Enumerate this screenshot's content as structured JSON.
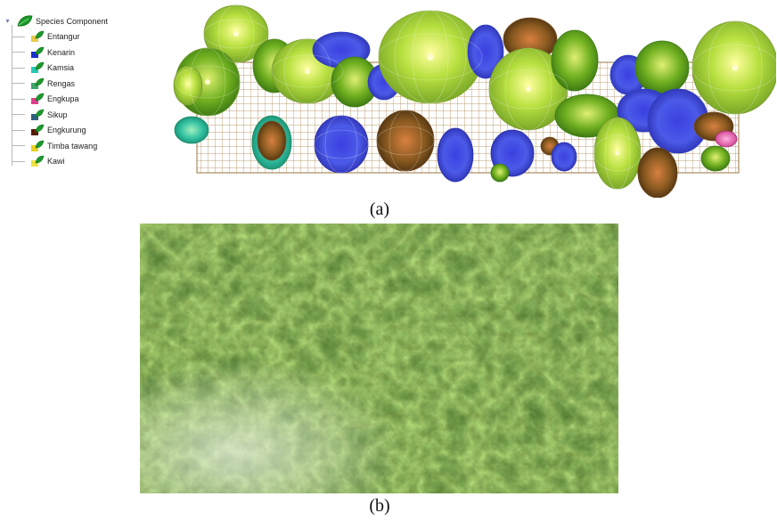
{
  "tree": {
    "root_label": "Species Component",
    "root_icon": "leaf-icon",
    "items": [
      {
        "label": "Entangur",
        "color": "#e6c84a"
      },
      {
        "label": "Kenarin",
        "color": "#1a2fd0"
      },
      {
        "label": "Kamsia",
        "color": "#29c9b6"
      },
      {
        "label": "Rengas",
        "color": "#3fa46a"
      },
      {
        "label": "Engkupa",
        "color": "#e0408c"
      },
      {
        "label": "Sikup",
        "color": "#2f6080"
      },
      {
        "label": "Engkurung",
        "color": "#5a1a08"
      },
      {
        "label": "Timba tawang",
        "color": "#e8d020"
      },
      {
        "label": "Kawi",
        "color": "#f0e040"
      }
    ]
  },
  "panel_a": {
    "caption": "(a)",
    "grid_color": "#b08a4a"
  },
  "panel_b": {
    "caption": "(b)"
  }
}
